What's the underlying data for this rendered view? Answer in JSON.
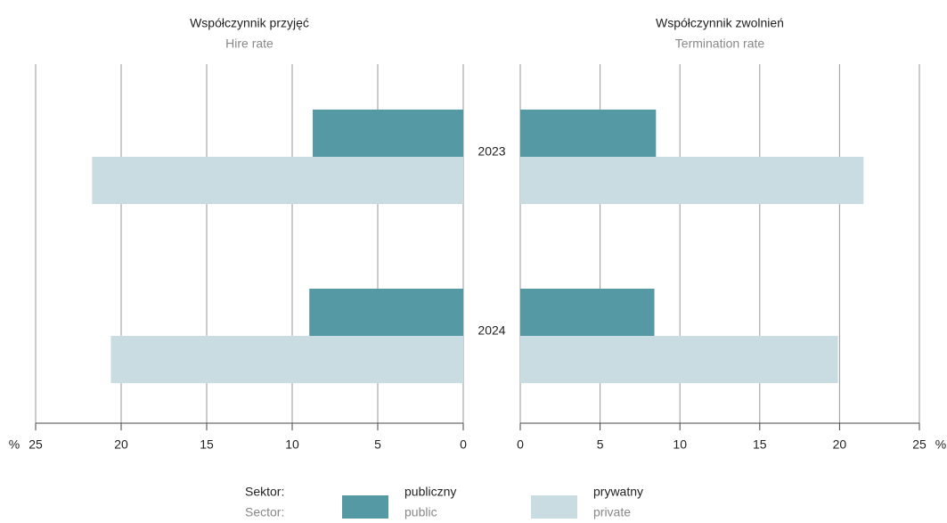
{
  "chart_data": {
    "type": "bar",
    "orientation": "horizontal",
    "categories": [
      "2023",
      "2024"
    ],
    "legend_title": "Sektor:",
    "legend_subtitle": "Sector:",
    "series": [
      {
        "name": "publiczny",
        "name_en": "public",
        "color": "#5499a3"
      },
      {
        "name": "prywatny",
        "name_en": "private",
        "color": "#c8dce2"
      }
    ],
    "panels": [
      {
        "title": "Współczynnik przyjęć",
        "subtitle": "Hire rate",
        "reversed": true,
        "unit": "%",
        "xlim": [
          0,
          25
        ],
        "xticks": [
          0,
          5,
          10,
          15,
          20,
          25
        ],
        "grid": true,
        "values": [
          [
            8.8,
            9.0
          ],
          [
            21.7,
            20.6
          ]
        ]
      },
      {
        "title": "Współczynnik zwolnień",
        "subtitle": "Termination rate",
        "reversed": false,
        "unit": "%",
        "xlim": [
          0,
          25
        ],
        "xticks": [
          0,
          5,
          10,
          15,
          20,
          25
        ],
        "grid": true,
        "values": [
          [
            8.5,
            8.4
          ],
          [
            21.5,
            19.9
          ]
        ]
      }
    ]
  }
}
